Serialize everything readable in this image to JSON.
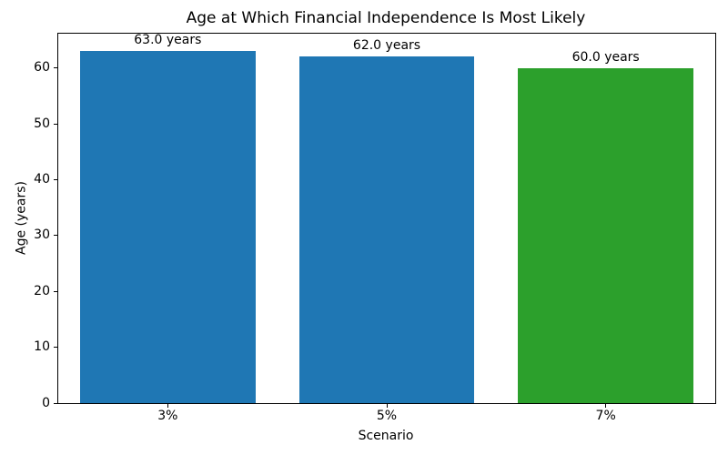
{
  "chart_data": {
    "type": "bar",
    "title": "Age at Which Financial Independence Is Most Likely",
    "xlabel": "Scenario",
    "ylabel": "Age (years)",
    "categories": [
      "3%",
      "5%",
      "7%"
    ],
    "values": [
      63.0,
      62.0,
      60.0
    ],
    "bar_labels": [
      "63.0 years",
      "62.0 years",
      "60.0 years"
    ],
    "bar_colors": [
      "#1f77b4",
      "#1f77b4",
      "#2ca02c"
    ],
    "ylim": [
      0,
      66.15
    ],
    "yticks": [
      0,
      10,
      20,
      30,
      40,
      50,
      60
    ],
    "bar_width_fraction": 0.8,
    "grid": false,
    "legend_position": "none"
  },
  "colors": {
    "bar_blue": "#1f77b4",
    "bar_green": "#2ca02c",
    "spine": "#000000",
    "text": "#000000",
    "background": "#ffffff"
  }
}
